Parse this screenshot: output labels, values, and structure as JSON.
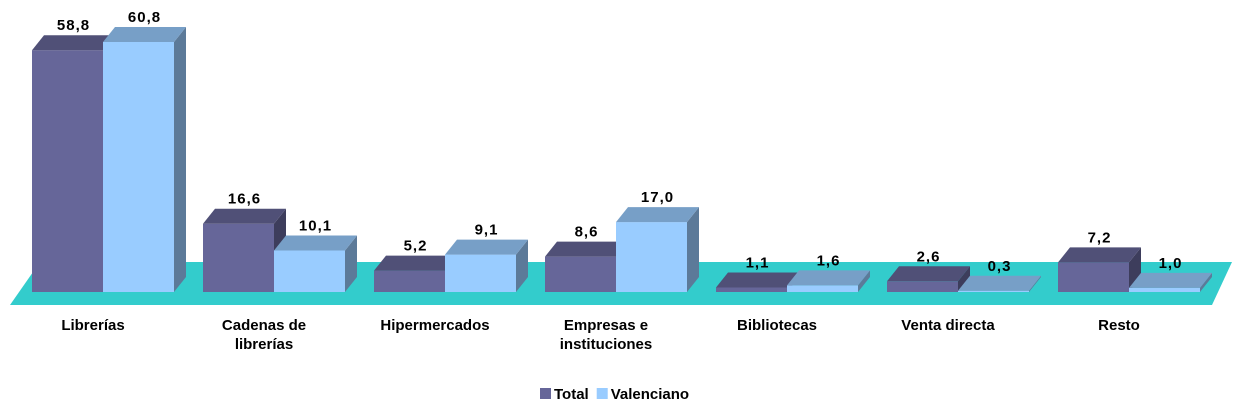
{
  "chart_data": {
    "type": "bar3d",
    "categories": [
      "Librerías",
      "Cadenas de librerías",
      "Hipermercados",
      "Empresas e instituciones",
      "Bibliotecas",
      "Venta directa",
      "Resto"
    ],
    "series": [
      {
        "name": "Total",
        "color": "#666699",
        "values": [
          58.8,
          16.6,
          5.2,
          8.6,
          1.1,
          2.6,
          7.2
        ],
        "value_labels": [
          "58,8",
          "16,6",
          "5,2",
          "8,6",
          "1,1",
          "2,6",
          "7,2"
        ]
      },
      {
        "name": "Valenciano",
        "color": "#99ccff",
        "values": [
          60.8,
          10.1,
          9.1,
          17.0,
          1.6,
          0.3,
          1.0
        ],
        "value_labels": [
          "60,8",
          "10,1",
          "9,1",
          "17,0",
          "1,6",
          "0,3",
          "1,0"
        ]
      }
    ],
    "legend": "bottom"
  }
}
